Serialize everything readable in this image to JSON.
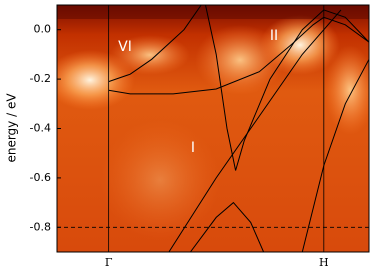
{
  "chart_data": {
    "type": "line",
    "y_label": "energy / eV",
    "xlim": [
      -0.24,
      1.21
    ],
    "ylim": [
      -0.9,
      0.1
    ],
    "xticks": [
      {
        "value": 0,
        "label": "Γ"
      },
      {
        "value": 1,
        "label": "H"
      }
    ],
    "yticks": [
      {
        "value": 0,
        "label": "0.0"
      },
      -0.2,
      -0.4,
      -0.6,
      -0.8
    ],
    "hline": -0.8,
    "annotations": [
      "VI",
      "II",
      "I"
    ],
    "series": [
      {
        "color": "#000000",
        "x": [
          0,
          0.1,
          0.2,
          0.3,
          0.35,
          0.43
        ],
        "values": [
          -0.21,
          -0.18,
          -0.12,
          -0.04,
          0.0,
          0.1
        ]
      },
      {
        "color": "#000000",
        "x": [
          0,
          0.1,
          0.3,
          0.5,
          0.7,
          0.85,
          0.95,
          1.0,
          1.1,
          1.21
        ],
        "values": [
          -0.245,
          -0.26,
          -0.26,
          -0.24,
          -0.17,
          -0.06,
          0.02,
          0.05,
          0.02,
          -0.05
        ]
      },
      {
        "color": "#000000",
        "x": [
          0.45,
          0.5,
          0.55,
          0.59,
          0.63,
          0.75,
          0.9,
          1.0,
          1.1,
          1.21
        ],
        "values": [
          0.1,
          -0.1,
          -0.4,
          -0.57,
          -0.45,
          -0.2,
          0.0,
          0.08,
          0.05,
          -0.05
        ]
      },
      {
        "color": "#000000",
        "x": [
          0.38,
          0.5,
          0.58,
          0.66,
          0.72
        ],
        "values": [
          -0.9,
          -0.76,
          -0.7,
          -0.78,
          -0.9
        ]
      },
      {
        "color": "#000000",
        "x": [
          0.28,
          0.5,
          0.7,
          0.9,
          1.0,
          1.08
        ],
        "values": [
          -0.9,
          -0.6,
          -0.35,
          -0.1,
          0.0,
          0.08
        ]
      },
      {
        "color": "#000000",
        "x": [
          0.9,
          1.0,
          1.1,
          1.21
        ],
        "values": [
          -0.9,
          -0.55,
          -0.3,
          -0.12
        ]
      }
    ]
  }
}
